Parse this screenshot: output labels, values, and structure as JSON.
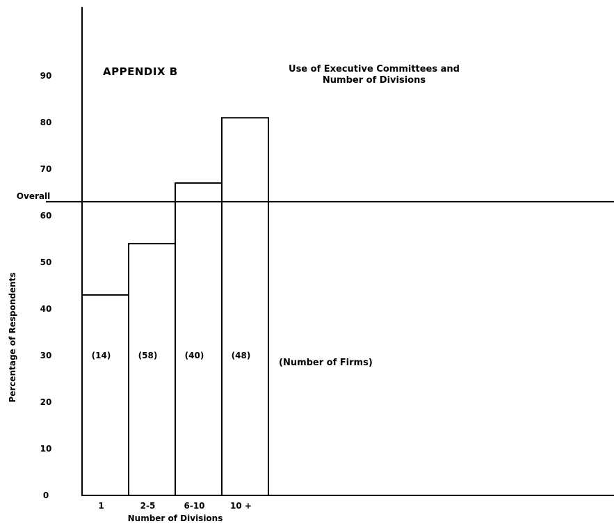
{
  "appendix_label": "APPENDIX B",
  "firms_note": "(Number of Firms)",
  "chart_data": {
    "type": "bar",
    "title_lines": [
      "Use of Executive Committees and",
      "Number of Divisions"
    ],
    "xlabel": "Number of Divisions",
    "ylabel": "Percentage of Respondents",
    "categories": [
      "1",
      "2-5",
      "6-10",
      "10 +"
    ],
    "values": [
      43,
      54,
      67,
      81
    ],
    "firm_counts": [
      "(14)",
      "(58)",
      "(40)",
      "(48)"
    ],
    "firm_counts_y": 30,
    "reference_line": {
      "label": "Overall",
      "value": 63
    },
    "yticks": [
      0,
      10,
      20,
      30,
      40,
      50,
      60,
      70,
      80,
      90
    ],
    "ylim": [
      0,
      100
    ],
    "grid": false,
    "legend": "none"
  }
}
